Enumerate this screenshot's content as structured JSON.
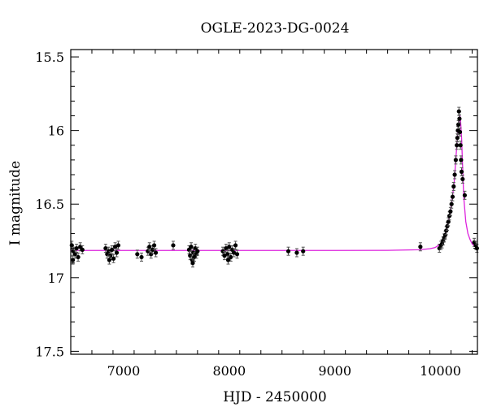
{
  "chart_data": {
    "type": "scatter",
    "title": "OGLE-2023-DG-0024",
    "xlabel": "HJD - 2450000",
    "ylabel": "I magnitude",
    "xlim": [
      6500,
      10350
    ],
    "ylim": [
      15.45,
      17.52
    ],
    "y_inverted": true,
    "x_ticks": [
      {
        "value": 7000,
        "label": "7000"
      },
      {
        "value": 8000,
        "label": "8000"
      },
      {
        "value": 9000,
        "label": "9000"
      },
      {
        "value": 10000,
        "label": "10000"
      }
    ],
    "y_ticks": [
      {
        "value": 15.5,
        "label": "15.5"
      },
      {
        "value": 16,
        "label": "16"
      },
      {
        "value": 16.5,
        "label": "16.5"
      },
      {
        "value": 17,
        "label": "17"
      },
      {
        "value": 17.5,
        "label": "17.5"
      }
    ],
    "grid": false,
    "colors": {
      "points": "#000000",
      "model": "#dd22dd"
    },
    "model": {
      "baseline": 16.815,
      "x": [
        6500,
        9000,
        9500,
        9800,
        9900,
        9950,
        10000,
        10030,
        10060,
        10090,
        10110,
        10130,
        10150,
        10160,
        10170,
        10180,
        10185,
        10190,
        10200,
        10210,
        10220,
        10240,
        10260,
        10280,
        10300,
        10330,
        10350
      ],
      "y": [
        16.815,
        16.815,
        16.814,
        16.81,
        16.803,
        16.795,
        16.77,
        16.74,
        16.67,
        16.57,
        16.47,
        16.35,
        16.15,
        16.05,
        15.96,
        15.92,
        15.9,
        15.93,
        16.05,
        16.25,
        16.45,
        16.62,
        16.7,
        16.74,
        16.77,
        16.79,
        16.8
      ]
    },
    "points": [
      {
        "x": 6510,
        "y": 16.78
      },
      {
        "x": 6525,
        "y": 16.82
      },
      {
        "x": 6540,
        "y": 16.84
      },
      {
        "x": 6555,
        "y": 16.8
      },
      {
        "x": 6570,
        "y": 16.86
      },
      {
        "x": 6590,
        "y": 16.79
      },
      {
        "x": 6610,
        "y": 16.81
      },
      {
        "x": 6520,
        "y": 16.88
      },
      {
        "x": 6830,
        "y": 16.8
      },
      {
        "x": 6845,
        "y": 16.84
      },
      {
        "x": 6860,
        "y": 16.82
      },
      {
        "x": 6875,
        "y": 16.85
      },
      {
        "x": 6890,
        "y": 16.81
      },
      {
        "x": 6905,
        "y": 16.87
      },
      {
        "x": 6920,
        "y": 16.79
      },
      {
        "x": 6935,
        "y": 16.83
      },
      {
        "x": 6950,
        "y": 16.78
      },
      {
        "x": 6865,
        "y": 16.88
      },
      {
        "x": 7130,
        "y": 16.84
      },
      {
        "x": 7170,
        "y": 16.86
      },
      {
        "x": 7230,
        "y": 16.82
      },
      {
        "x": 7245,
        "y": 16.79
      },
      {
        "x": 7260,
        "y": 16.84
      },
      {
        "x": 7275,
        "y": 16.81
      },
      {
        "x": 7290,
        "y": 16.78
      },
      {
        "x": 7305,
        "y": 16.83
      },
      {
        "x": 7470,
        "y": 16.78
      },
      {
        "x": 7620,
        "y": 16.81
      },
      {
        "x": 7630,
        "y": 16.85
      },
      {
        "x": 7640,
        "y": 16.79
      },
      {
        "x": 7650,
        "y": 16.88
      },
      {
        "x": 7660,
        "y": 16.83
      },
      {
        "x": 7670,
        "y": 16.86
      },
      {
        "x": 7680,
        "y": 16.8
      },
      {
        "x": 7690,
        "y": 16.84
      },
      {
        "x": 7700,
        "y": 16.82
      },
      {
        "x": 7655,
        "y": 16.9
      },
      {
        "x": 7940,
        "y": 16.82
      },
      {
        "x": 7955,
        "y": 16.85
      },
      {
        "x": 7970,
        "y": 16.8
      },
      {
        "x": 7985,
        "y": 16.84
      },
      {
        "x": 8000,
        "y": 16.79
      },
      {
        "x": 8015,
        "y": 16.86
      },
      {
        "x": 8030,
        "y": 16.81
      },
      {
        "x": 8045,
        "y": 16.83
      },
      {
        "x": 8060,
        "y": 16.78
      },
      {
        "x": 8075,
        "y": 16.84
      },
      {
        "x": 7990,
        "y": 16.88
      },
      {
        "x": 8560,
        "y": 16.82
      },
      {
        "x": 8640,
        "y": 16.83
      },
      {
        "x": 8700,
        "y": 16.82
      },
      {
        "x": 9810,
        "y": 16.79
      },
      {
        "x": 9990,
        "y": 16.8
      },
      {
        "x": 10005,
        "y": 16.78
      },
      {
        "x": 10015,
        "y": 16.77
      },
      {
        "x": 10025,
        "y": 16.75
      },
      {
        "x": 10035,
        "y": 16.73
      },
      {
        "x": 10045,
        "y": 16.71
      },
      {
        "x": 10055,
        "y": 16.68
      },
      {
        "x": 10065,
        "y": 16.65
      },
      {
        "x": 10075,
        "y": 16.62
      },
      {
        "x": 10085,
        "y": 16.58
      },
      {
        "x": 10095,
        "y": 16.55
      },
      {
        "x": 10105,
        "y": 16.5
      },
      {
        "x": 10115,
        "y": 16.45
      },
      {
        "x": 10125,
        "y": 16.38
      },
      {
        "x": 10135,
        "y": 16.3
      },
      {
        "x": 10145,
        "y": 16.2
      },
      {
        "x": 10155,
        "y": 16.1
      },
      {
        "x": 10160,
        "y": 16.05
      },
      {
        "x": 10165,
        "y": 16.0
      },
      {
        "x": 10170,
        "y": 15.96
      },
      {
        "x": 10175,
        "y": 15.87
      },
      {
        "x": 10180,
        "y": 15.92
      },
      {
        "x": 10185,
        "y": 16.01
      },
      {
        "x": 10190,
        "y": 16.1
      },
      {
        "x": 10195,
        "y": 16.2
      },
      {
        "x": 10200,
        "y": 16.28
      },
      {
        "x": 10210,
        "y": 16.33
      },
      {
        "x": 10230,
        "y": 16.44
      },
      {
        "x": 10320,
        "y": 16.76
      },
      {
        "x": 10335,
        "y": 16.78
      },
      {
        "x": 10345,
        "y": 16.8
      }
    ]
  }
}
